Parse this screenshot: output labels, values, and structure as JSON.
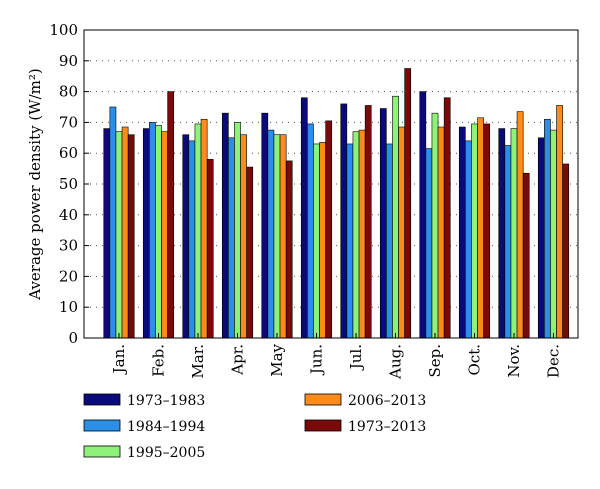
{
  "chart_data": {
    "type": "bar",
    "ylabel": "Average power density (W/m²)",
    "xlabel": "",
    "ylim": [
      0,
      100
    ],
    "yticks": [
      0,
      10,
      20,
      30,
      40,
      50,
      60,
      70,
      80,
      90,
      100
    ],
    "grid": "horizontal dotted",
    "legend_placement": "bottom",
    "categories": [
      "Jan.",
      "Feb.",
      "Mar.",
      "Apr.",
      "May",
      "Jun.",
      "Jul.",
      "Aug.",
      "Sep.",
      "Oct.",
      "Nov.",
      "Dec."
    ],
    "series": [
      {
        "name": "1973–1983",
        "color": "#0a0a7a",
        "values": [
          68,
          68,
          66,
          73,
          73,
          78,
          76,
          74.5,
          80,
          68.5,
          68,
          65
        ]
      },
      {
        "name": "1984–1994",
        "color": "#2a8fe8",
        "values": [
          75,
          70,
          64,
          65,
          67.5,
          69.5,
          63,
          63,
          61.5,
          64,
          62.5,
          71
        ]
      },
      {
        "name": "1995–2005",
        "color": "#8ef27a",
        "values": [
          67,
          69,
          69.5,
          70,
          66,
          63,
          67,
          78.5,
          73,
          69.5,
          68,
          67.5
        ]
      },
      {
        "name": "2006–2013",
        "color": "#ff8c1a",
        "values": [
          68.5,
          67,
          71,
          66,
          66,
          63.5,
          67.5,
          68.5,
          68.5,
          71.5,
          73.5,
          75.5
        ]
      },
      {
        "name": "1973–2013",
        "color": "#7a0a0a",
        "values": [
          66,
          80,
          58,
          55.5,
          57.5,
          70.5,
          75.5,
          87.5,
          78,
          69.5,
          53.5,
          56.5
        ]
      }
    ]
  }
}
